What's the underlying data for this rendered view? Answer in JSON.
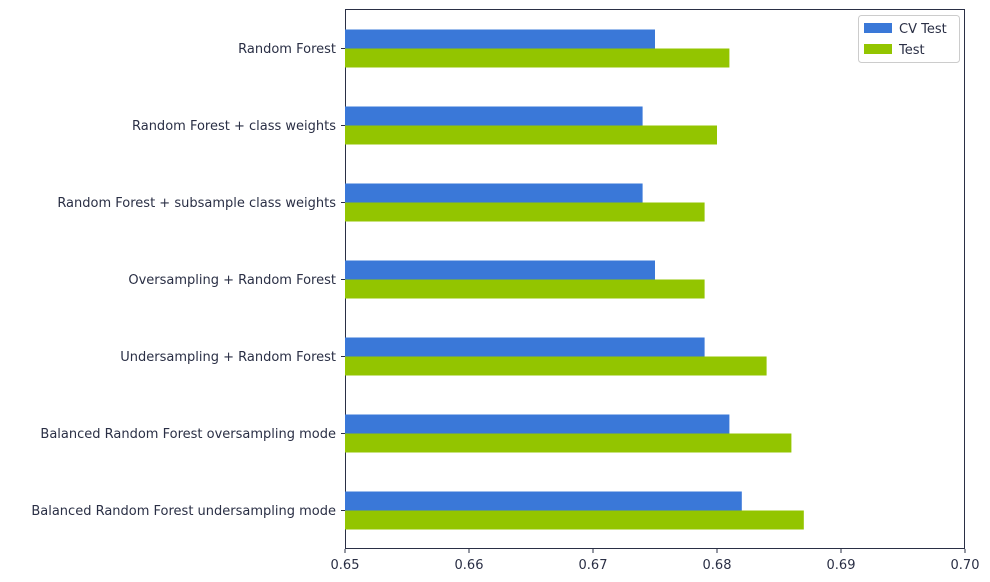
{
  "chart_data": {
    "type": "bar",
    "orientation": "horizontal",
    "categories": [
      "Random Forest",
      "Random Forest + class weights",
      "Random Forest + subsample class weights",
      "Oversampling + Random Forest",
      "Undersampling + Random Forest",
      "Balanced Random Forest oversampling mode",
      "Balanced Random Forest undersampling mode"
    ],
    "series": [
      {
        "name": "CV Test",
        "color": "#3a78d8",
        "values": [
          0.675,
          0.674,
          0.674,
          0.675,
          0.679,
          0.681,
          0.682
        ]
      },
      {
        "name": "Test",
        "color": "#93c500",
        "values": [
          0.681,
          0.68,
          0.679,
          0.679,
          0.684,
          0.686,
          0.687
        ]
      }
    ],
    "xlim": [
      0.65,
      0.7
    ],
    "xticks": [
      "0.65",
      "0.66",
      "0.67",
      "0.68",
      "0.69",
      "0.70"
    ],
    "xlabel": "",
    "ylabel": "",
    "grid": false,
    "legend_position": "top-right"
  }
}
